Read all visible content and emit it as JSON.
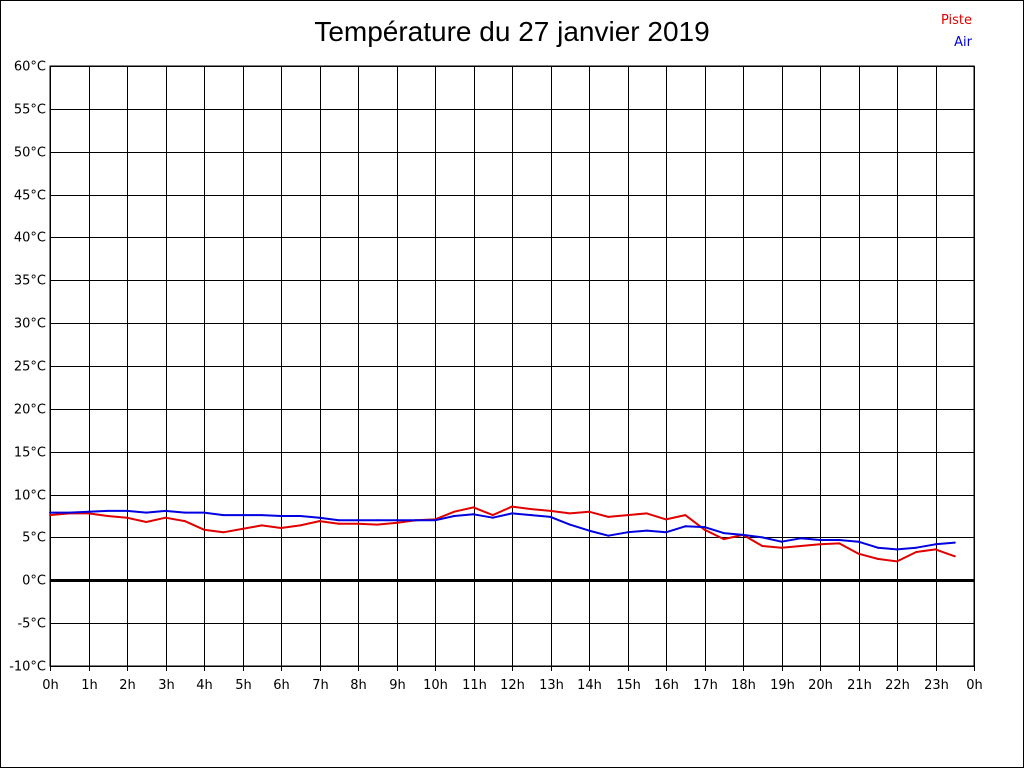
{
  "chart_data": {
    "type": "line",
    "title": "Température du 27 janvier 2019",
    "xlabel": "",
    "ylabel": "",
    "ylim": [
      -10,
      60
    ],
    "xlim": [
      0,
      24
    ],
    "yticks": [
      60,
      55,
      50,
      45,
      40,
      35,
      30,
      25,
      20,
      15,
      10,
      5,
      0,
      -5,
      -10
    ],
    "y_tick_labels": [
      "60°C",
      "55°C",
      "50°C",
      "45°C",
      "40°C",
      "35°C",
      "30°C",
      "25°C",
      "20°C",
      "15°C",
      "10°C",
      "5°C",
      "0°C",
      "-5°C",
      "-10°C"
    ],
    "x_tick_labels": [
      "0h",
      "1h",
      "2h",
      "3h",
      "4h",
      "5h",
      "6h",
      "7h",
      "8h",
      "9h",
      "10h",
      "11h",
      "12h",
      "13h",
      "14h",
      "15h",
      "16h",
      "17h",
      "18h",
      "19h",
      "20h",
      "21h",
      "22h",
      "23h",
      "0h"
    ],
    "grid": true,
    "legend_position": "top-right",
    "series": [
      {
        "name": "Piste",
        "color": "#e00000",
        "x": [
          0,
          0.5,
          1,
          1.5,
          2,
          2.5,
          3,
          3.5,
          4,
          4.5,
          5,
          5.5,
          6,
          6.5,
          7,
          7.5,
          8,
          8.5,
          9,
          9.5,
          10,
          10.5,
          11,
          11.5,
          12,
          12.5,
          13,
          13.5,
          14,
          14.5,
          15,
          15.5,
          16,
          16.5,
          17,
          17.5,
          18,
          18.5,
          19,
          19.5,
          20,
          20.5,
          21,
          21.5,
          22,
          22.5,
          23,
          23.5
        ],
        "values": [
          7.6,
          7.8,
          7.8,
          7.5,
          7.3,
          6.8,
          7.3,
          6.9,
          5.9,
          5.6,
          6.0,
          6.4,
          6.1,
          6.4,
          6.9,
          6.6,
          6.6,
          6.5,
          6.7,
          7.0,
          7.1,
          8.0,
          8.5,
          7.6,
          8.6,
          8.3,
          8.1,
          7.8,
          8.0,
          7.4,
          7.6,
          7.8,
          7.1,
          7.6,
          5.9,
          4.8,
          5.3,
          4.0,
          3.8,
          4.0,
          4.2,
          4.3,
          3.1,
          2.5,
          2.2,
          3.3,
          3.6,
          2.8
        ]
      },
      {
        "name": "Air",
        "color": "#0000e0",
        "x": [
          0,
          0.5,
          1,
          1.5,
          2,
          2.5,
          3,
          3.5,
          4,
          4.5,
          5,
          5.5,
          6,
          6.5,
          7,
          7.5,
          8,
          8.5,
          9,
          9.5,
          10,
          10.5,
          11,
          11.5,
          12,
          12.5,
          13,
          13.5,
          14,
          14.5,
          15,
          15.5,
          16,
          16.5,
          17,
          17.5,
          18,
          18.5,
          19,
          19.5,
          20,
          20.5,
          21,
          21.5,
          22,
          22.5,
          23,
          23.5
        ],
        "values": [
          7.9,
          7.9,
          8.0,
          8.1,
          8.1,
          7.9,
          8.1,
          7.9,
          7.9,
          7.6,
          7.6,
          7.6,
          7.5,
          7.5,
          7.3,
          7.0,
          7.0,
          7.0,
          7.0,
          7.0,
          7.0,
          7.5,
          7.7,
          7.3,
          7.8,
          7.6,
          7.4,
          6.5,
          5.8,
          5.2,
          5.6,
          5.8,
          5.6,
          6.3,
          6.2,
          5.5,
          5.3,
          5.0,
          4.5,
          4.9,
          4.7,
          4.7,
          4.5,
          3.8,
          3.6,
          3.8,
          4.2,
          4.4
        ]
      }
    ]
  }
}
